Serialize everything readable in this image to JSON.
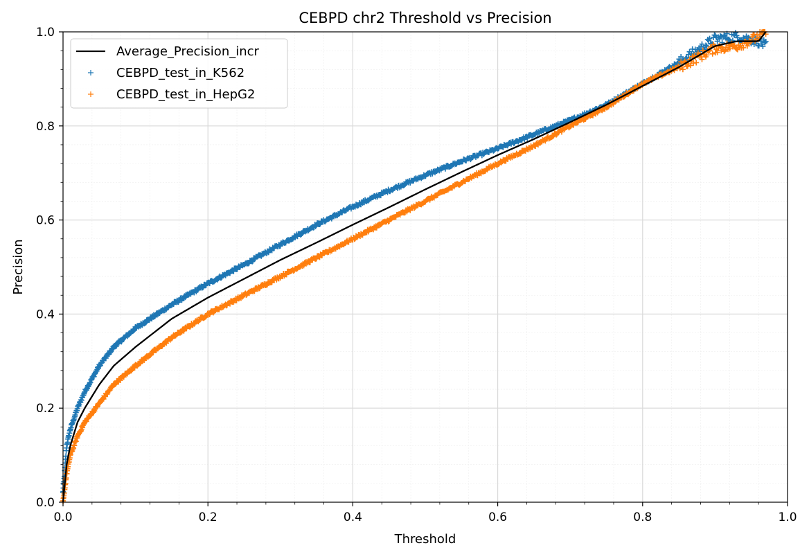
{
  "chart_data": {
    "type": "line",
    "title": "CEBPD chr2 Threshold vs Precision",
    "xlabel": "Threshold",
    "ylabel": "Precision",
    "xlim": [
      0.0,
      1.0
    ],
    "ylim": [
      0.0,
      1.0
    ],
    "xticks": [
      "0.0",
      "0.2",
      "0.4",
      "0.6",
      "0.8",
      "1.0"
    ],
    "yticks": [
      "0.0",
      "0.2",
      "0.4",
      "0.6",
      "0.8",
      "1.0"
    ],
    "grid": true,
    "minor_grid": true,
    "legend_position": "top-left",
    "x": [
      0.0,
      0.005,
      0.01,
      0.02,
      0.03,
      0.05,
      0.07,
      0.1,
      0.15,
      0.2,
      0.25,
      0.3,
      0.35,
      0.4,
      0.45,
      0.5,
      0.55,
      0.6,
      0.65,
      0.7,
      0.75,
      0.8,
      0.85,
      0.9,
      0.93,
      0.96,
      0.97
    ],
    "series": [
      {
        "name": "Average_Precision_incr",
        "style": "line",
        "color": "#000000",
        "values": [
          0.0,
          0.08,
          0.12,
          0.17,
          0.2,
          0.25,
          0.29,
          0.33,
          0.39,
          0.435,
          0.475,
          0.515,
          0.552,
          0.59,
          0.627,
          0.665,
          0.702,
          0.738,
          0.772,
          0.808,
          0.845,
          0.885,
          0.925,
          0.97,
          0.98,
          0.98,
          1.0
        ]
      },
      {
        "name": "CEBPD_test_in_K562",
        "style": "plus-markers",
        "color": "#1f77b4",
        "values": [
          0.02,
          0.12,
          0.155,
          0.2,
          0.235,
          0.29,
          0.33,
          0.37,
          0.42,
          0.465,
          0.505,
          0.548,
          0.59,
          0.628,
          0.663,
          0.695,
          0.725,
          0.752,
          0.782,
          0.812,
          0.845,
          0.89,
          0.935,
          0.985,
          0.99,
          0.98,
          0.97
        ]
      },
      {
        "name": "CEBPD_test_in_HepG2",
        "style": "plus-markers",
        "color": "#ff7f0e",
        "values": [
          0.0,
          0.06,
          0.1,
          0.14,
          0.17,
          0.21,
          0.25,
          0.29,
          0.35,
          0.4,
          0.44,
          0.48,
          0.52,
          0.56,
          0.6,
          0.64,
          0.68,
          0.72,
          0.758,
          0.8,
          0.84,
          0.89,
          0.925,
          0.965,
          0.97,
          0.99,
          1.0
        ]
      }
    ]
  }
}
